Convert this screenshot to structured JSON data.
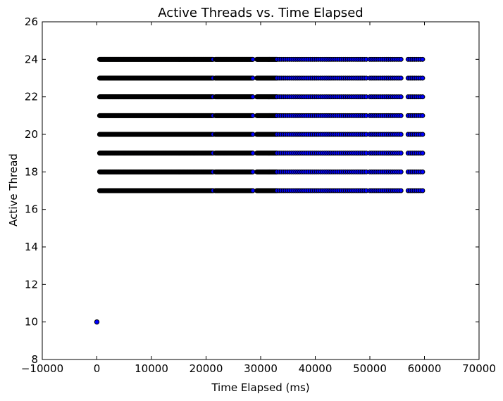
{
  "chart_data": {
    "type": "scatter",
    "title": "Active Threads vs. Time Elapsed",
    "xlabel": "Time Elapsed (ms)",
    "ylabel": "Active Thread",
    "xlim": [
      -10000,
      70000
    ],
    "ylim": [
      8,
      26
    ],
    "xticks": [
      -10000,
      0,
      10000,
      20000,
      30000,
      40000,
      50000,
      60000,
      70000
    ],
    "xtick_labels": [
      "−10000",
      "0",
      "10000",
      "20000",
      "30000",
      "40000",
      "50000",
      "60000",
      "70000"
    ],
    "yticks": [
      8,
      10,
      12,
      14,
      16,
      18,
      20,
      22,
      24,
      26
    ],
    "ytick_labels": [
      "8",
      "10",
      "12",
      "14",
      "16",
      "18",
      "20",
      "22",
      "24",
      "26"
    ],
    "grid": false,
    "marker_color": "#0000ff",
    "marker_edge_color": "#000000",
    "series": [
      {
        "outlier_points": [
          {
            "x": 0,
            "y": 10
          }
        ],
        "thread_levels": [
          17,
          18,
          19,
          20,
          21,
          22,
          23,
          24
        ],
        "dense_segments": [
          [
            500,
            17800
          ],
          [
            17800,
            21300
          ],
          [
            21700,
            28600
          ],
          [
            29300,
            33000
          ]
        ],
        "sparse_segments": [
          [
            33000,
            49500
          ],
          [
            50000,
            55800
          ],
          [
            57000,
            60000
          ]
        ]
      }
    ]
  }
}
